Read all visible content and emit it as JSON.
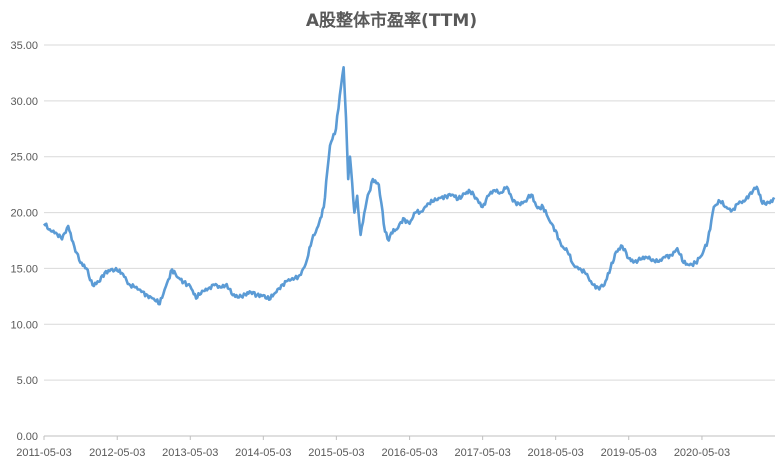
{
  "chart_data": {
    "type": "line",
    "title": "A股整体市盈率(TTM)",
    "xlabel": "",
    "ylabel": "",
    "ylim": [
      0,
      35
    ],
    "y_ticks": [
      "0.00",
      "5.00",
      "10.00",
      "15.00",
      "20.00",
      "25.00",
      "30.00",
      "35.00"
    ],
    "x_ticks": [
      "2011-05-03",
      "2012-05-03",
      "2013-05-03",
      "2014-05-03",
      "2015-05-03",
      "2016-05-03",
      "2017-05-03",
      "2018-05-03",
      "2019-05-03",
      "2020-05-03"
    ],
    "xlim": [
      "2011-05-03",
      "2021-05-03"
    ],
    "grid": "horizontal",
    "legend": "none",
    "series": [
      {
        "color": "#5b9bd5",
        "x": [
          "2011-05-03",
          "2011-06-01",
          "2011-07-01",
          "2011-08-01",
          "2011-09-01",
          "2011-10-01",
          "2011-11-01",
          "2011-12-01",
          "2012-01-01",
          "2012-02-01",
          "2012-03-01",
          "2012-04-01",
          "2012-05-03",
          "2012-06-01",
          "2012-07-01",
          "2012-08-01",
          "2012-09-01",
          "2012-10-01",
          "2012-11-01",
          "2012-12-01",
          "2013-01-01",
          "2013-02-01",
          "2013-03-01",
          "2013-04-01",
          "2013-05-03",
          "2013-06-01",
          "2013-07-01",
          "2013-08-01",
          "2013-09-01",
          "2013-10-01",
          "2013-11-01",
          "2013-12-01",
          "2014-01-01",
          "2014-02-01",
          "2014-03-01",
          "2014-04-01",
          "2014-05-03",
          "2014-06-01",
          "2014-07-01",
          "2014-08-01",
          "2014-09-01",
          "2014-10-01",
          "2014-11-01",
          "2014-12-01",
          "2015-01-01",
          "2015-02-01",
          "2015-03-01",
          "2015-04-01",
          "2015-05-01",
          "2015-05-20",
          "2015-06-08",
          "2015-06-20",
          "2015-07-01",
          "2015-07-10",
          "2015-08-01",
          "2015-08-15",
          "2015-09-01",
          "2015-10-01",
          "2015-11-01",
          "2015-12-01",
          "2016-01-01",
          "2016-01-20",
          "2016-02-01",
          "2016-03-01",
          "2016-04-01",
          "2016-05-03",
          "2016-06-01",
          "2016-07-01",
          "2016-08-01",
          "2016-09-01",
          "2016-10-01",
          "2016-11-01",
          "2016-12-01",
          "2017-01-01",
          "2017-02-01",
          "2017-03-01",
          "2017-04-01",
          "2017-05-03",
          "2017-06-01",
          "2017-07-01",
          "2017-08-01",
          "2017-09-01",
          "2017-10-01",
          "2017-11-01",
          "2017-12-01",
          "2018-01-01",
          "2018-02-01",
          "2018-03-01",
          "2018-04-01",
          "2018-05-03",
          "2018-06-01",
          "2018-07-01",
          "2018-08-01",
          "2018-09-01",
          "2018-10-01",
          "2018-11-01",
          "2018-12-01",
          "2019-01-01",
          "2019-02-01",
          "2019-03-01",
          "2019-04-01",
          "2019-05-03",
          "2019-06-01",
          "2019-07-01",
          "2019-08-01",
          "2019-09-01",
          "2019-10-01",
          "2019-11-01",
          "2019-12-01",
          "2020-01-01",
          "2020-02-01",
          "2020-03-01",
          "2020-04-01",
          "2020-05-03",
          "2020-06-01",
          "2020-07-01",
          "2020-08-01",
          "2020-09-01",
          "2020-10-01",
          "2020-11-01",
          "2020-12-01",
          "2021-01-01",
          "2021-02-01",
          "2021-03-01",
          "2021-04-01",
          "2021-05-01"
        ],
        "values": [
          19.0,
          18.5,
          18.2,
          17.6,
          18.8,
          17.0,
          15.5,
          15.0,
          13.5,
          13.8,
          14.6,
          14.9,
          14.8,
          14.5,
          13.6,
          13.3,
          12.9,
          12.6,
          12.3,
          11.8,
          13.4,
          14.9,
          14.2,
          13.8,
          13.4,
          12.3,
          13.0,
          13.2,
          13.5,
          13.3,
          13.6,
          12.6,
          12.4,
          12.7,
          12.9,
          12.6,
          12.6,
          12.2,
          12.8,
          13.5,
          13.9,
          14.0,
          14.4,
          15.4,
          17.5,
          18.8,
          20.5,
          26.0,
          27.5,
          30.5,
          33.0,
          28.5,
          23.0,
          25.0,
          20.0,
          21.5,
          18.0,
          21.0,
          23.0,
          22.5,
          18.3,
          17.5,
          18.2,
          18.5,
          19.5,
          19.0,
          20.0,
          20.1,
          20.8,
          21.0,
          21.3,
          21.5,
          21.6,
          21.2,
          21.7,
          21.9,
          21.3,
          20.5,
          21.5,
          22.0,
          21.8,
          22.3,
          21.0,
          20.8,
          21.0,
          21.6,
          20.4,
          20.5,
          19.3,
          18.4,
          17.0,
          16.5,
          15.3,
          15.0,
          14.5,
          13.6,
          13.3,
          13.5,
          15.0,
          16.5,
          17.0,
          15.9,
          15.6,
          15.8,
          16.0,
          15.8,
          15.6,
          16.0,
          16.2,
          16.8,
          15.5,
          15.3,
          15.5,
          16.2,
          17.5,
          20.5,
          21.0,
          20.5,
          20.2,
          20.8,
          21.0,
          21.8,
          22.3,
          20.8,
          20.9,
          21.2
        ]
      }
    ]
  }
}
